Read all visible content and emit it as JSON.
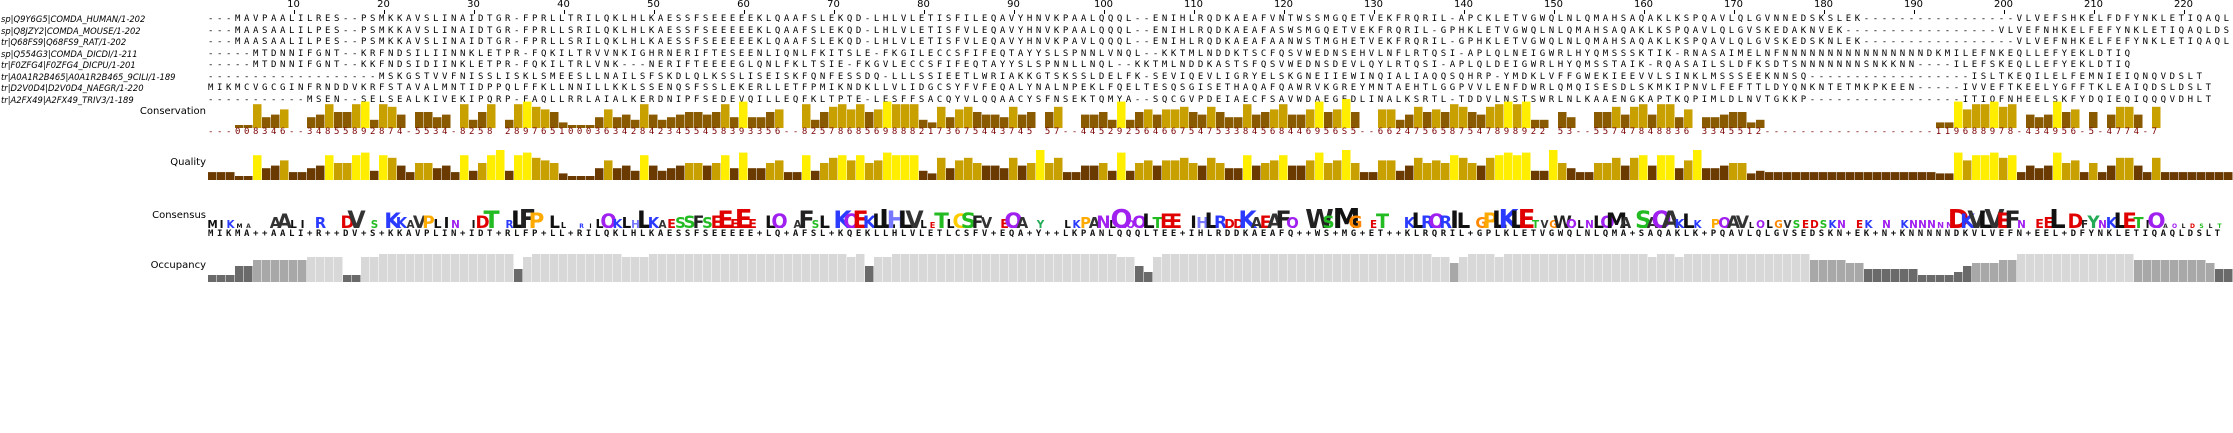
{
  "ruler": {
    "ticks": [
      "10",
      "20",
      "30",
      "40",
      "50",
      "60",
      "70",
      "80",
      "90",
      "100",
      "110",
      "120",
      "130",
      "140",
      "150",
      "160",
      "170",
      "180",
      "190",
      "200",
      "210",
      "220"
    ]
  },
  "sequences": [
    {
      "name": "sp|Q9Y6G5|COMDA_HUMAN/1-202",
      "seq": "---MAVPAALILRES--PSMKKAVSLINAIDTGR-FPRLLTRILQKLHLKAESSFSEEEEEKLQAAFSLEKQD-LHLVLETISFILEQAVYHNVKPAALQQQL--ENIHLRQDKAEAFVNTWSSMGQETVEKFRQRIL-APCKLETVGWQLNLQMAHSAQAKLKSPQAVLQLGVNNEDSKSLEK-----------------VLVEFSHKELFDFYNKLETIQAQLDSLT"
    },
    {
      "name": "sp|Q8JZY2|COMDA_MOUSE/1-202",
      "seq": "---MAASAALILPES--PSMKKAVSLINAIDTGR-FPRLLSRILQKLHLKAESSFSEEEEEKLQAAFSLEKQD-LHLVLETISFVLEQAVYHNVKPAALQQQL--ENIHLRQDKAEAFASWSMGQETVEKFRQRIL-GPHKLETVGWQLNLQMAHSAQAKLKSPQAVLQLGVSKEDAKNVEK-----------------VLVEFNHKELFEFYNKLETIQAQLDSLT"
    },
    {
      "name": "tr|Q68FS9|Q68FS9_RAT/1-202",
      "seq": "---MAASAALILPES--PSMKKAVSLINAIDTGR-FPRLLSRILQKLHLKAESSFSEEEEEKLQAAFSLEKQD-LHLVLETISFVLEQAVYHNVKPAVLQQQL--ENIHLRQDKAEAFAANWSTMGHETVEKFRQRIL-GPHKLETVGWQLNLQMAHSAQAKLKSPQAVLQLGVSKEDSKNLEK-----------------VLVEFNHKELFEFYNKLETIQAQLDSLT"
    },
    {
      "name": "sp|Q554G3|COMDA_DICDI/1-211",
      "seq": "-----MTDNNIFGNT--KRFNDSILIINNKLETPR-FQKILTRVVNKIGHRNERIFTESEENLIQNLFKITSLE-FKGILECCSFIFEQTAYYSLSPNNLVNQL--KKTMLNDDKTSCFQSVWEDNSEHVLNFLRTQSI-APLQLNEIGWRLHYQMSSSKTIK-RNASAIMELNFNNNNNNNNNNNNNNNNDKMILEFNKEQLLEFYEKLDTIQ"
    },
    {
      "name": "tr|F0ZFG4|F0ZFG4_DICPU/1-201",
      "seq": "-----MTDNNIFGNT--KKFNDSIDIINKLETPR-FQKILTRLVNK---NERIFTEEEEGLQNLFKLTSIE-FKGVLECCSFIFEQTAYYSLSPNNLLNQL--KKTMLNDDKASTSFQSVWEDNSDEVLQYLRTQSI-APLQLDEIGWRLHYQMSSTAIK-RQASAILSLDFKSDTSNNNNNNNSNKKNN----ILEFSKEQLLEFYEKLDTIQ"
    },
    {
      "name": "tr|A0A1R2B465|A0A1R2B465_9CILI/1-189",
      "seq": "-------------------MSKGSTVVFNISSLISKLSMEESLLNAILSFSKDLQLKSSLISEISKFQNFESSDQ-LLLSSIEETLWRIAKKGTSKSSLDELFK-SEVIQEVLIGRYELSKGNEIIEWINQIALIAQQSQHRP-YMDKLVFFGWEKIEEVVLSINKLMSSSEEKNNSQ------------------ISLTKEQILELFEMNIEIQNQVDSLT"
    },
    {
      "name": "tr|D2V0D4|D2V0D4_NAEGR/1-220",
      "seq": "MIKMCVGCGINFRNDDVKRFSTAVALMNTIDPPQLFFKLLNNILLKKLSSENQSFSSLEKERLLETFPMIKNDKLLVLIDGCSYFVFEQALYNALNPEKLFQELTESQSGISETHAQAFQAWRVKGREYMNTAEHTLGGPVVLENFDWRLQMQISESDLSKMKIPNVLFEFTTLDYQNKNTETMKPKEEN-----IVVEFTKEELYGFFTKLEAIQDSLDSLT"
    },
    {
      "name": "tr|A2FX49|A2FX49_TRIV3/1-189",
      "seq": "-----------MSEN--SELSEALKIVEKIPQRP-FAQLLRRLAIALKERDNIPFSEDEVQILLEQFKLTPTE-LESFFSACQYVLQQAACYSFNSEKTQMYA--SQCGVPDEIAECFSAVWDAEGEDLINALKSRTL-TDDVLNSTSWRLNLKAAENGKAPTKQPIMLDLNVTGKKP-----------------ITIQFNHEELSKFYDQIEQIQQQVDHLT"
    }
  ],
  "annotations": {
    "conservation_label": "Conservation",
    "quality_label": "Quality",
    "consensus_label": "Consensus",
    "occupancy_label": "Occupancy",
    "conservation_scores": "---008346--34855892874-5534-8258 2897651000363428423455458393356--82578685698882173675443745 57--44529256466754753384568446956S5--6624756587547898922 53--55747848836 3345512-------------------119688978-434956-5-4774-7",
    "consensus_sequence": "MIKMA++AALI+R++DV+S+KKAVPLIN+IDT+RLFP+LL+RILQKLHLKAESSFSEEEEE+LQ+AFSL+KQEKLLHLVLETLCSFV+EQA+Y++LKPANLQQQLTEE+IHLRDDKAEAFQ++WS+MG+ET++KLRQRIL+GPLKLETVGWQLNLQMA+SAQAKLK+PQAVLQLGVSEDSKN+EK+N+KNNNNNDKVLVEFN+EEL+DFYNKLETIQAQLDSLT"
  },
  "colors": {
    "conservation_high": "#ffee00",
    "conservation_mid": "#c8a000",
    "conservation_low": "#8a5a00",
    "quality_high": "#ffee00",
    "quality_low": "#6a3a00",
    "occupancy_light": "#d8d8d8",
    "occupancy_mid": "#a8a8a8",
    "occupancy_dark": "#6a6a6a",
    "score_color": "#7a0000"
  }
}
